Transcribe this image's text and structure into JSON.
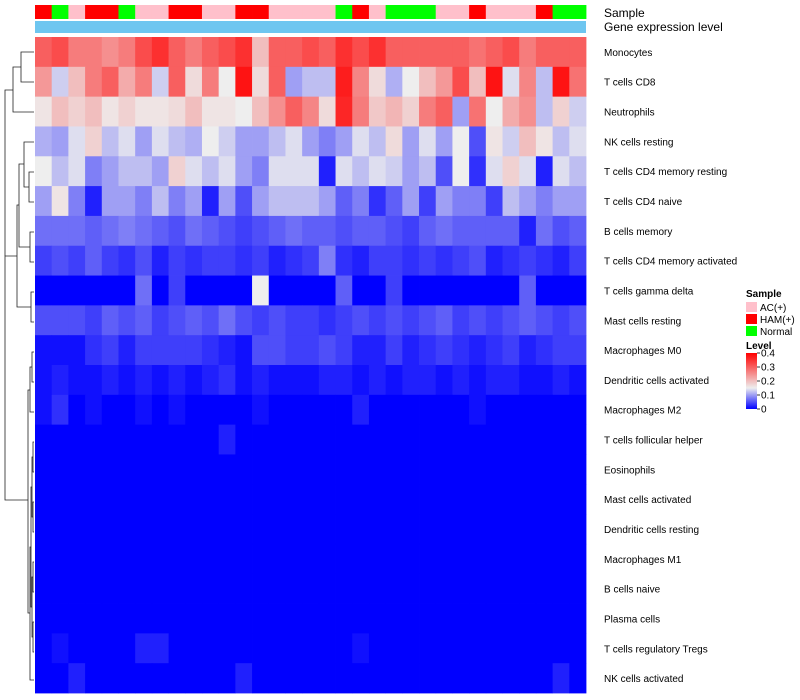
{
  "chart_data": {
    "type": "heatmap",
    "annotation_labels": {
      "sample": "Sample",
      "gene": "Gene expression level"
    },
    "rows": [
      "Monocytes",
      "T cells CD8",
      "Neutrophils",
      "NK cells resting",
      "T cells CD4 memory resting",
      "T cells CD4 naive",
      "B cells memory",
      "T cells CD4 memory activated",
      "T cells gamma delta",
      "Mast cells resting",
      "Macrophages M0",
      "Dendritic cells activated",
      "Macrophages M2",
      "T cells follicular helper",
      "Eosinophils",
      "Mast cells activated",
      "Dendritic cells resting",
      "Macrophages M1",
      "B cells naive",
      "Plasma cells",
      "T cells regulatory  Tregs",
      "NK cells activated"
    ],
    "columns_sample": [
      "HAM(+)",
      "Normal",
      "AC(+)",
      "HAM(+)",
      "HAM(+)",
      "Normal",
      "AC(+)",
      "AC(+)",
      "HAM(+)",
      "HAM(+)",
      "AC(+)",
      "AC(+)",
      "HAM(+)",
      "HAM(+)",
      "AC(+)",
      "AC(+)",
      "AC(+)",
      "AC(+)",
      "Normal",
      "HAM(+)",
      "AC(+)",
      "Normal",
      "Normal",
      "Normal",
      "AC(+)",
      "AC(+)",
      "HAM(+)",
      "AC(+)",
      "AC(+)",
      "AC(+)",
      "HAM(+)",
      "Normal",
      "Normal"
    ],
    "values": [
      [
        0.3,
        0.32,
        0.27,
        0.27,
        0.25,
        0.27,
        0.32,
        0.35,
        0.3,
        0.27,
        0.3,
        0.32,
        0.35,
        0.2,
        0.3,
        0.3,
        0.32,
        0.3,
        0.35,
        0.32,
        0.35,
        0.3,
        0.3,
        0.3,
        0.3,
        0.3,
        0.28,
        0.3,
        0.32,
        0.27,
        0.3,
        0.3,
        0.3
      ],
      [
        0.24,
        0.13,
        0.2,
        0.27,
        0.3,
        0.22,
        0.27,
        0.13,
        0.3,
        0.17,
        0.27,
        0.15,
        0.38,
        0.17,
        0.3,
        0.1,
        0.12,
        0.12,
        0.37,
        0.26,
        0.17,
        0.11,
        0.15,
        0.2,
        0.24,
        0.32,
        0.2,
        0.38,
        0.14,
        0.26,
        0.12,
        0.38,
        0.28
      ],
      [
        0.16,
        0.2,
        0.18,
        0.2,
        0.16,
        0.18,
        0.16,
        0.16,
        0.17,
        0.2,
        0.16,
        0.16,
        0.15,
        0.2,
        0.25,
        0.3,
        0.26,
        0.17,
        0.36,
        0.27,
        0.19,
        0.21,
        0.18,
        0.27,
        0.3,
        0.1,
        0.28,
        0.15,
        0.22,
        0.25,
        0.12,
        0.18,
        0.13
      ],
      [
        0.11,
        0.1,
        0.14,
        0.18,
        0.12,
        0.14,
        0.1,
        0.14,
        0.12,
        0.11,
        0.15,
        0.13,
        0.1,
        0.1,
        0.12,
        0.14,
        0.1,
        0.08,
        0.1,
        0.14,
        0.12,
        0.17,
        0.1,
        0.14,
        0.1,
        0.15,
        0.05,
        0.16,
        0.13,
        0.2,
        0.16,
        0.12,
        0.14
      ],
      [
        0.15,
        0.12,
        0.14,
        0.08,
        0.1,
        0.12,
        0.12,
        0.1,
        0.18,
        0.14,
        0.12,
        0.14,
        0.1,
        0.08,
        0.14,
        0.14,
        0.14,
        0.02,
        0.14,
        0.12,
        0.14,
        0.13,
        0.1,
        0.12,
        0.05,
        0.15,
        0.03,
        0.14,
        0.18,
        0.14,
        0.02,
        0.14,
        0.12
      ],
      [
        0.1,
        0.16,
        0.08,
        0.02,
        0.1,
        0.1,
        0.08,
        0.12,
        0.08,
        0.1,
        0.02,
        0.1,
        0.05,
        0.1,
        0.12,
        0.12,
        0.12,
        0.1,
        0.06,
        0.08,
        0.03,
        0.06,
        0.1,
        0.04,
        0.1,
        0.08,
        0.08,
        0.04,
        0.12,
        0.1,
        0.08,
        0.1,
        0.1
      ],
      [
        0.07,
        0.07,
        0.07,
        0.06,
        0.07,
        0.08,
        0.07,
        0.06,
        0.05,
        0.07,
        0.06,
        0.05,
        0.04,
        0.05,
        0.06,
        0.07,
        0.06,
        0.06,
        0.05,
        0.06,
        0.06,
        0.05,
        0.04,
        0.06,
        0.07,
        0.06,
        0.06,
        0.06,
        0.06,
        0.02,
        0.07,
        0.05,
        0.06
      ],
      [
        0.04,
        0.05,
        0.04,
        0.06,
        0.04,
        0.03,
        0.05,
        0.02,
        0.04,
        0.03,
        0.04,
        0.04,
        0.03,
        0.04,
        0.02,
        0.03,
        0.04,
        0.08,
        0.03,
        0.02,
        0.04,
        0.04,
        0.03,
        0.04,
        0.03,
        0.04,
        0.05,
        0.02,
        0.03,
        0.04,
        0.03,
        0.02,
        0.04
      ],
      [
        0.0,
        0.0,
        0.0,
        0.0,
        0.0,
        0.0,
        0.07,
        0.0,
        0.04,
        0.0,
        0.0,
        0.0,
        0.0,
        0.15,
        0.0,
        0.0,
        0.0,
        0.0,
        0.06,
        0.0,
        0.0,
        0.04,
        0.0,
        0.0,
        0.0,
        0.0,
        0.0,
        0.0,
        0.0,
        0.06,
        0.0,
        0.0,
        0.0
      ],
      [
        0.05,
        0.05,
        0.05,
        0.04,
        0.06,
        0.05,
        0.06,
        0.04,
        0.05,
        0.06,
        0.05,
        0.07,
        0.05,
        0.04,
        0.05,
        0.04,
        0.04,
        0.03,
        0.04,
        0.05,
        0.04,
        0.05,
        0.04,
        0.05,
        0.06,
        0.04,
        0.05,
        0.04,
        0.05,
        0.06,
        0.05,
        0.04,
        0.05
      ],
      [
        0.01,
        0.01,
        0.01,
        0.03,
        0.04,
        0.02,
        0.04,
        0.04,
        0.04,
        0.04,
        0.03,
        0.02,
        0.01,
        0.05,
        0.05,
        0.04,
        0.04,
        0.05,
        0.04,
        0.02,
        0.02,
        0.04,
        0.02,
        0.03,
        0.04,
        0.03,
        0.02,
        0.03,
        0.04,
        0.02,
        0.03,
        0.04,
        0.04
      ],
      [
        0.01,
        0.02,
        0.01,
        0.01,
        0.02,
        0.01,
        0.02,
        0.01,
        0.02,
        0.01,
        0.02,
        0.03,
        0.01,
        0.02,
        0.01,
        0.01,
        0.01,
        0.02,
        0.02,
        0.01,
        0.02,
        0.01,
        0.02,
        0.02,
        0.01,
        0.02,
        0.01,
        0.02,
        0.02,
        0.01,
        0.01,
        0.02,
        0.01
      ],
      [
        0.01,
        0.03,
        0.0,
        0.01,
        0.0,
        0.0,
        0.01,
        0.0,
        0.01,
        0.0,
        0.0,
        0.0,
        0.0,
        0.01,
        0.0,
        0.0,
        0.0,
        0.0,
        0.0,
        0.02,
        0.0,
        0.0,
        0.0,
        0.0,
        0.0,
        0.0,
        0.01,
        0.0,
        0.0,
        0.0,
        0.0,
        0.0,
        0.0
      ],
      [
        0.0,
        0.0,
        0.0,
        0.0,
        0.0,
        0.0,
        0.0,
        0.0,
        0.0,
        0.0,
        0.0,
        0.02,
        0.0,
        0.0,
        0.0,
        0.0,
        0.0,
        0.0,
        0.0,
        0.0,
        0.0,
        0.0,
        0.0,
        0.0,
        0.0,
        0.0,
        0.0,
        0.0,
        0.0,
        0.0,
        0.0,
        0.0,
        0.0
      ],
      [
        0.0,
        0.0,
        0.0,
        0.0,
        0.0,
        0.0,
        0.0,
        0.0,
        0.0,
        0.0,
        0.0,
        0.0,
        0.0,
        0.0,
        0.0,
        0.0,
        0.0,
        0.0,
        0.0,
        0.0,
        0.0,
        0.0,
        0.0,
        0.0,
        0.0,
        0.0,
        0.0,
        0.0,
        0.0,
        0.0,
        0.0,
        0.0,
        0.0
      ],
      [
        0.0,
        0.0,
        0.0,
        0.0,
        0.0,
        0.0,
        0.0,
        0.0,
        0.0,
        0.0,
        0.0,
        0.0,
        0.0,
        0.0,
        0.0,
        0.0,
        0.0,
        0.0,
        0.0,
        0.0,
        0.0,
        0.0,
        0.0,
        0.0,
        0.0,
        0.0,
        0.0,
        0.0,
        0.0,
        0.0,
        0.0,
        0.0,
        0.0
      ],
      [
        0.0,
        0.0,
        0.0,
        0.0,
        0.0,
        0.0,
        0.0,
        0.0,
        0.0,
        0.0,
        0.0,
        0.0,
        0.0,
        0.0,
        0.0,
        0.0,
        0.0,
        0.0,
        0.0,
        0.0,
        0.0,
        0.0,
        0.0,
        0.0,
        0.0,
        0.0,
        0.0,
        0.0,
        0.0,
        0.0,
        0.0,
        0.0,
        0.0
      ],
      [
        0.0,
        0.0,
        0.0,
        0.0,
        0.0,
        0.0,
        0.0,
        0.0,
        0.0,
        0.0,
        0.0,
        0.0,
        0.0,
        0.0,
        0.0,
        0.0,
        0.0,
        0.0,
        0.0,
        0.0,
        0.0,
        0.0,
        0.0,
        0.0,
        0.0,
        0.0,
        0.0,
        0.0,
        0.0,
        0.0,
        0.0,
        0.0,
        0.0
      ],
      [
        0.0,
        0.0,
        0.0,
        0.0,
        0.0,
        0.0,
        0.0,
        0.0,
        0.0,
        0.0,
        0.0,
        0.0,
        0.0,
        0.0,
        0.0,
        0.0,
        0.0,
        0.0,
        0.0,
        0.0,
        0.0,
        0.0,
        0.0,
        0.0,
        0.0,
        0.0,
        0.0,
        0.0,
        0.0,
        0.0,
        0.0,
        0.0,
        0.0
      ],
      [
        0.0,
        0.0,
        0.0,
        0.0,
        0.0,
        0.0,
        0.0,
        0.0,
        0.0,
        0.0,
        0.0,
        0.0,
        0.0,
        0.0,
        0.0,
        0.0,
        0.0,
        0.0,
        0.0,
        0.0,
        0.0,
        0.0,
        0.0,
        0.0,
        0.0,
        0.0,
        0.0,
        0.0,
        0.0,
        0.0,
        0.0,
        0.0,
        0.0
      ],
      [
        0.0,
        0.01,
        0.0,
        0.0,
        0.0,
        0.0,
        0.02,
        0.02,
        0.0,
        0.0,
        0.0,
        0.0,
        0.0,
        0.0,
        0.0,
        0.0,
        0.0,
        0.0,
        0.0,
        0.01,
        0.0,
        0.0,
        0.0,
        0.0,
        0.0,
        0.0,
        0.0,
        0.0,
        0.0,
        0.0,
        0.0,
        0.0,
        0.0
      ],
      [
        0.0,
        0.0,
        0.02,
        0.0,
        0.0,
        0.0,
        0.0,
        0.0,
        0.0,
        0.0,
        0.0,
        0.0,
        0.02,
        0.0,
        0.0,
        0.0,
        0.0,
        0.0,
        0.0,
        0.0,
        0.0,
        0.0,
        0.0,
        0.0,
        0.0,
        0.0,
        0.0,
        0.0,
        0.0,
        0.0,
        0.0,
        0.02,
        0.0
      ]
    ],
    "color_scale": {
      "min": 0,
      "mid": 0.15,
      "max": 0.4,
      "low_color": "#0000ff",
      "mid_color": "#eeeeee",
      "high_color": "#ff0000"
    },
    "sample_colors": {
      "AC(+)": "#ffc0cb",
      "HAM(+)": "#ff0000",
      "Normal": "#00ff00"
    },
    "gene_color": "#6ec6f0",
    "legend": {
      "sample_title": "Sample",
      "sample_entries": [
        "AC(+)",
        "HAM(+)",
        "Normal"
      ],
      "level_title": "Level",
      "level_ticks": [
        {
          "value": 0.4,
          "label": "0.4"
        },
        {
          "value": 0.3,
          "label": "0.3"
        },
        {
          "value": 0.2,
          "label": "0.2"
        },
        {
          "value": 0.1,
          "label": "0.1"
        },
        {
          "value": 0,
          "label": "0"
        }
      ]
    }
  }
}
